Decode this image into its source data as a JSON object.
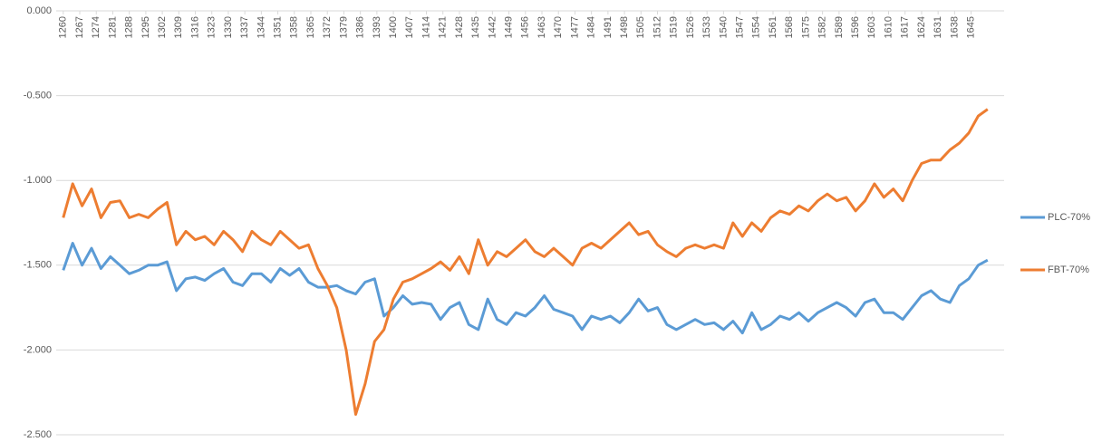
{
  "chart_data": {
    "type": "line",
    "x": [
      1260,
      1264,
      1268,
      1272,
      1276,
      1280,
      1284,
      1288,
      1292,
      1296,
      1300,
      1304,
      1308,
      1312,
      1316,
      1320,
      1324,
      1328,
      1332,
      1336,
      1340,
      1344,
      1348,
      1352,
      1356,
      1360,
      1364,
      1368,
      1372,
      1376,
      1380,
      1384,
      1388,
      1392,
      1396,
      1400,
      1404,
      1408,
      1412,
      1416,
      1420,
      1424,
      1428,
      1432,
      1436,
      1440,
      1444,
      1448,
      1452,
      1456,
      1460,
      1464,
      1468,
      1472,
      1476,
      1480,
      1484,
      1488,
      1492,
      1496,
      1500,
      1504,
      1508,
      1512,
      1516,
      1520,
      1524,
      1528,
      1532,
      1536,
      1540,
      1544,
      1548,
      1552,
      1556,
      1560,
      1564,
      1568,
      1572,
      1576,
      1580,
      1584,
      1588,
      1592,
      1596,
      1600,
      1604,
      1608,
      1612,
      1616,
      1620,
      1624,
      1628,
      1632,
      1636,
      1640,
      1644,
      1648,
      1652
    ],
    "series": [
      {
        "name": "PLC-70%",
        "color": "#5b9bd5",
        "values": [
          -1.53,
          -1.37,
          -1.5,
          -1.4,
          -1.52,
          -1.45,
          -1.5,
          -1.55,
          -1.53,
          -1.5,
          -1.5,
          -1.48,
          -1.65,
          -1.58,
          -1.57,
          -1.59,
          -1.55,
          -1.52,
          -1.6,
          -1.62,
          -1.55,
          -1.55,
          -1.6,
          -1.52,
          -1.56,
          -1.52,
          -1.6,
          -1.63,
          -1.63,
          -1.62,
          -1.65,
          -1.67,
          -1.6,
          -1.58,
          -1.8,
          -1.75,
          -1.68,
          -1.73,
          -1.72,
          -1.73,
          -1.82,
          -1.75,
          -1.72,
          -1.85,
          -1.88,
          -1.7,
          -1.82,
          -1.85,
          -1.78,
          -1.8,
          -1.75,
          -1.68,
          -1.76,
          -1.78,
          -1.8,
          -1.88,
          -1.8,
          -1.82,
          -1.8,
          -1.84,
          -1.78,
          -1.7,
          -1.77,
          -1.75,
          -1.85,
          -1.88,
          -1.85,
          -1.82,
          -1.85,
          -1.84,
          -1.88,
          -1.83,
          -1.9,
          -1.78,
          -1.88,
          -1.85,
          -1.8,
          -1.82,
          -1.78,
          -1.83,
          -1.78,
          -1.75,
          -1.72,
          -1.75,
          -1.8,
          -1.72,
          -1.7,
          -1.78,
          -1.78,
          -1.82,
          -1.75,
          -1.68,
          -1.65,
          -1.7,
          -1.72,
          -1.62,
          -1.58,
          -1.5,
          -1.47
        ]
      },
      {
        "name": "FBT-70%",
        "color": "#ed7d31",
        "values": [
          -1.22,
          -1.02,
          -1.15,
          -1.05,
          -1.22,
          -1.13,
          -1.12,
          -1.22,
          -1.2,
          -1.22,
          -1.17,
          -1.13,
          -1.38,
          -1.3,
          -1.35,
          -1.33,
          -1.38,
          -1.3,
          -1.35,
          -1.42,
          -1.3,
          -1.35,
          -1.38,
          -1.3,
          -1.35,
          -1.4,
          -1.38,
          -1.52,
          -1.62,
          -1.75,
          -2.0,
          -2.38,
          -2.2,
          -1.95,
          -1.88,
          -1.7,
          -1.6,
          -1.58,
          -1.55,
          -1.52,
          -1.48,
          -1.53,
          -1.45,
          -1.55,
          -1.35,
          -1.5,
          -1.42,
          -1.45,
          -1.4,
          -1.35,
          -1.42,
          -1.45,
          -1.4,
          -1.45,
          -1.5,
          -1.4,
          -1.37,
          -1.4,
          -1.35,
          -1.3,
          -1.25,
          -1.32,
          -1.3,
          -1.38,
          -1.42,
          -1.45,
          -1.4,
          -1.38,
          -1.4,
          -1.38,
          -1.4,
          -1.25,
          -1.33,
          -1.25,
          -1.3,
          -1.22,
          -1.18,
          -1.2,
          -1.15,
          -1.18,
          -1.12,
          -1.08,
          -1.12,
          -1.1,
          -1.18,
          -1.12,
          -1.02,
          -1.1,
          -1.05,
          -1.12,
          -1.0,
          -0.9,
          -0.88,
          -0.88,
          -0.82,
          -0.78,
          -0.72,
          -0.62,
          -0.58
        ]
      }
    ],
    "xlim": [
      1257,
      1659
    ],
    "xticks": [
      1260,
      1267,
      1274,
      1281,
      1288,
      1295,
      1302,
      1309,
      1316,
      1323,
      1330,
      1337,
      1344,
      1351,
      1358,
      1365,
      1372,
      1379,
      1386,
      1393,
      1400,
      1407,
      1414,
      1421,
      1428,
      1435,
      1442,
      1449,
      1456,
      1463,
      1470,
      1477,
      1484,
      1491,
      1498,
      1505,
      1512,
      1519,
      1526,
      1533,
      1540,
      1547,
      1554,
      1561,
      1568,
      1575,
      1582,
      1589,
      1596,
      1603,
      1610,
      1617,
      1624,
      1631,
      1638,
      1645
    ],
    "ylim": [
      -2.5,
      0
    ],
    "yticks": [
      {
        "value": 0,
        "label": "0.000"
      },
      {
        "value": -0.5,
        "label": "-0.500"
      },
      {
        "value": -1,
        "label": "-1.000"
      },
      {
        "value": -1.5,
        "label": "-1.500"
      },
      {
        "value": -2,
        "label": "-2.000"
      },
      {
        "value": -2.5,
        "label": "-2.500"
      }
    ],
    "grid": true,
    "legend": "right"
  }
}
